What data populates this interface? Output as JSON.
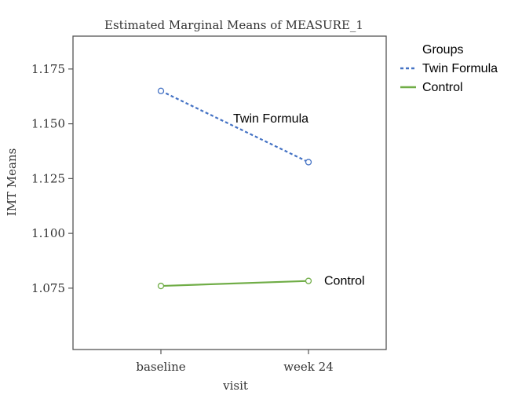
{
  "chart_data": {
    "type": "line",
    "title": "Estimated Marginal Means of MEASURE_1",
    "xlabel": "visit",
    "ylabel": "IMT Means",
    "categories": [
      "baseline",
      "week 24"
    ],
    "ylim": [
      1.047,
      1.19
    ],
    "yticks": [
      "1.075",
      "1.100",
      "1.125",
      "1.150",
      "1.175"
    ],
    "grid": false,
    "series": [
      {
        "name": "Twin Formula",
        "values": [
          1.165,
          1.1325
        ],
        "color": "#4472c4",
        "style": "dashed",
        "annotation": "Twin Formula"
      },
      {
        "name": "Control",
        "values": [
          1.076,
          1.0783
        ],
        "color": "#70ad47",
        "style": "solid",
        "annotation": "Control"
      }
    ],
    "legend": {
      "title": "Groups",
      "position": "right"
    }
  }
}
